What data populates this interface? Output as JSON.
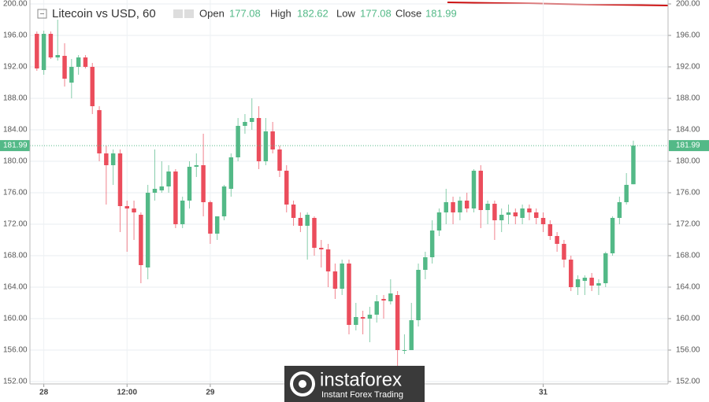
{
  "chart_data": {
    "type": "candlestick",
    "title": "Litecoin vs USD, 60",
    "ohlc_labels": {
      "open": "Open",
      "high": "High",
      "low": "Low",
      "close": "Close"
    },
    "up_color": "#53b987",
    "down_color": "#eb4d5c",
    "x": [
      0,
      1,
      2,
      3,
      4,
      5,
      6,
      7,
      8,
      9,
      10,
      11,
      12,
      13,
      14,
      15,
      16,
      17,
      18,
      19,
      20,
      21,
      22,
      23,
      24,
      25,
      26,
      27,
      28,
      29,
      30,
      31,
      32,
      33,
      34,
      35,
      36,
      37,
      38,
      39,
      40,
      41,
      42,
      43,
      44,
      45,
      46,
      47,
      48,
      49,
      50,
      51,
      52,
      53,
      54,
      55,
      56,
      57,
      58,
      59,
      60,
      61,
      62,
      63,
      64,
      65,
      66,
      67,
      68,
      69,
      70,
      71,
      72,
      73,
      74,
      75,
      76,
      77,
      78,
      79,
      80,
      81,
      82,
      83,
      84,
      85,
      86
    ],
    "open": [
      196.2,
      191.6,
      196.2,
      193.2,
      193.4,
      190,
      192,
      193.2,
      192,
      186.5,
      181,
      179.5,
      181,
      174.3,
      174,
      173.2,
      166.5,
      176,
      176.3,
      176.8,
      178.7,
      172,
      175,
      179.3,
      179.5,
      174.8,
      170.8,
      173,
      176.5,
      180.5,
      184.5,
      185,
      185.5,
      180,
      183.8,
      181.5,
      178.8,
      174.5,
      172.8,
      171.8,
      172.8,
      169,
      168.8,
      166,
      163.8,
      167,
      159.2,
      160.2,
      160,
      160.5,
      162.5,
      162.2,
      163,
      156,
      156,
      159.8,
      166.2,
      167.8,
      171.2,
      173.5,
      174.8,
      173.5,
      175,
      174,
      178.8,
      173.8,
      174.6,
      172.5,
      173.2,
      173.5,
      172.8,
      174,
      173.5,
      172.8,
      172,
      170.5,
      169.5,
      167.5,
      164,
      164.8,
      165.2,
      164.2,
      164.5,
      168.3,
      172.8,
      174.8,
      177.08
    ],
    "high": [
      196.5,
      196.6,
      196.5,
      198,
      195,
      193,
      193.5,
      193.5,
      192.5,
      187,
      182,
      181.5,
      181.5,
      175,
      175,
      173.5,
      177,
      181.5,
      180,
      179.5,
      179,
      175.5,
      180,
      181,
      183.5,
      175,
      173,
      177,
      181,
      185.5,
      186,
      188,
      187,
      185.5,
      185,
      182,
      179.5,
      175,
      173.5,
      173.5,
      173,
      170,
      169.5,
      167,
      167.5,
      167.5,
      162,
      161,
      161.5,
      163,
      163,
      165,
      163.5,
      158,
      162,
      167,
      168.5,
      172.5,
      174,
      176.5,
      175.5,
      175.5,
      176,
      179,
      179.5,
      175,
      175,
      174,
      174.5,
      174,
      174.5,
      174.5,
      174,
      173.5,
      172.5,
      171,
      170,
      168,
      165.5,
      165.5,
      165.8,
      165,
      168.5,
      173,
      175.5,
      178.5,
      182.62
    ],
    "low": [
      191.5,
      191,
      193,
      192.8,
      189.5,
      188,
      191,
      191.8,
      186,
      180,
      174.5,
      177,
      171,
      168.5,
      170,
      164.5,
      165,
      175,
      176,
      176,
      171.5,
      171.5,
      174,
      178,
      173,
      169.5,
      170,
      172.5,
      175.5,
      180,
      183.5,
      184,
      179,
      179.5,
      181,
      178,
      173.5,
      171.8,
      171,
      167.5,
      168,
      166.5,
      164,
      162.5,
      163,
      158,
      158.5,
      158,
      157,
      159.5,
      160,
      161.8,
      154,
      155.5,
      156,
      159,
      165,
      167,
      170.5,
      172,
      172,
      172.5,
      173.5,
      173.5,
      171.5,
      172,
      170,
      171,
      172,
      172,
      172,
      172.5,
      172,
      171,
      170,
      168.5,
      166.5,
      163.5,
      163,
      163,
      163.5,
      163,
      164,
      168,
      172,
      174.5,
      177.08
    ],
    "close": [
      191.8,
      196.2,
      193.2,
      193.5,
      190.5,
      192,
      193.2,
      192,
      187,
      181,
      179.5,
      181,
      174.3,
      174,
      173.5,
      166.8,
      176,
      176.5,
      176.8,
      178.7,
      172,
      175,
      179.3,
      179.5,
      174.8,
      170.8,
      173,
      176.8,
      180.5,
      184.5,
      185,
      185.5,
      180,
      183.8,
      181.5,
      178.8,
      174.5,
      172.8,
      171.8,
      173.2,
      169,
      168.8,
      166,
      163.8,
      167,
      159.2,
      160.2,
      160,
      160.5,
      162.2,
      162.3,
      163.2,
      156,
      156,
      159.8,
      166.2,
      167.8,
      171.2,
      173.5,
      174.8,
      173.5,
      175,
      174,
      178.8,
      173.8,
      174.6,
      172.5,
      173.2,
      173.5,
      173,
      174,
      173.5,
      172.8,
      172,
      170.5,
      169.5,
      167.5,
      164,
      165,
      165.2,
      164.2,
      164.5,
      168.3,
      172.8,
      174.8,
      177,
      181.99
    ],
    "xlim": [
      -1,
      91
    ],
    "xticks": [
      {
        "value": 1,
        "label": "28"
      },
      {
        "value": 13,
        "label": "12:00"
      },
      {
        "value": 25,
        "label": "29"
      },
      {
        "value": 73,
        "label": "31"
      }
    ],
    "ylim": [
      152,
      200
    ],
    "yticks": [
      {
        "value": 152,
        "label": "152.00"
      },
      {
        "value": 156,
        "label": "156.00"
      },
      {
        "value": 160,
        "label": "160.00"
      },
      {
        "value": 164,
        "label": "164.00"
      },
      {
        "value": 168,
        "label": "168.00"
      },
      {
        "value": 172,
        "label": "172.00"
      },
      {
        "value": 176,
        "label": "176.00"
      },
      {
        "value": 180,
        "label": "180.00"
      },
      {
        "value": 184,
        "label": "184.00"
      },
      {
        "value": 188,
        "label": "188.00"
      },
      {
        "value": 192,
        "label": "192.00"
      },
      {
        "value": 196,
        "label": "196.00"
      },
      {
        "value": 200,
        "label": "200.00"
      }
    ],
    "grid": true,
    "watermark": {
      "name": "instaforex",
      "tagline": "Instant Forex Trading"
    }
  }
}
